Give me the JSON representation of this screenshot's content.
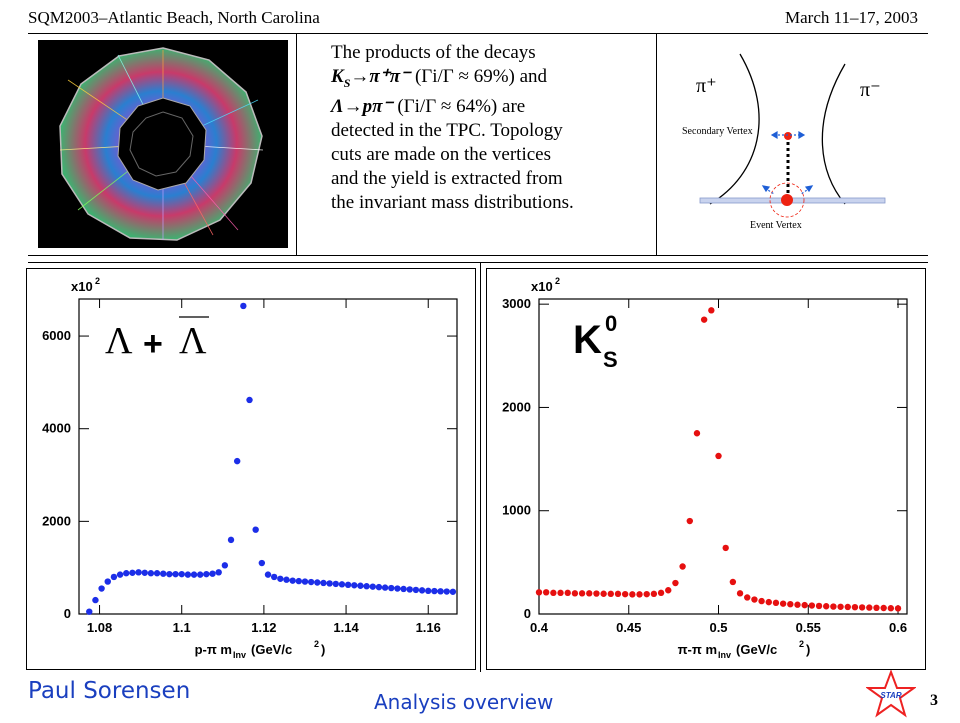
{
  "header": {
    "left": "SQM2003–Atlantic Beach, North Carolina",
    "right": "March 11–17, 2003"
  },
  "intro": {
    "line1": "The products of the decays",
    "line2_decay": "K",
    "line2_sub": "S",
    "line2_rest": "→π⁺π⁻",
    "line2_ratio": " (Γi/Γ  ≈ 69%) and",
    "line3_decay": "Λ→pπ⁻",
    "line3_ratio": " (Γi/Γ  ≈ 64%) are",
    "line4": "detected in the TPC.  Topology",
    "line5": "cuts are made on the vertices",
    "line6": "and the yield is extracted from",
    "line7": "the invariant mass distributions."
  },
  "diagram": {
    "pi_plus": "π⁺",
    "pi_minus": "π⁻",
    "secondary_vertex": "Secondary Vertex",
    "event_vertex": "Event Vertex"
  },
  "footer": {
    "name": "Paul Sorensen",
    "title": "Analysis overview",
    "page": "3",
    "logo_text": "STAR"
  },
  "chart_data": [
    {
      "type": "scatter",
      "title": "Λ + Λ̄",
      "title_main": "Λ",
      "title_plus": "+",
      "title_bar": "Λ",
      "multiplier": "x10",
      "multiplier_exp": "2",
      "xlabel": "p-π m",
      "xlabel_sub": "Inv",
      "xlabel_unit": " (GeV/c",
      "xlabel_exp": "2",
      "xlabel_close": ")",
      "xlim": [
        1.075,
        1.167
      ],
      "ylim": [
        0,
        6800
      ],
      "xticks": [
        1.08,
        1.1,
        1.12,
        1.14,
        1.16
      ],
      "xtick_labels": [
        "1.08",
        "1.1",
        "1.12",
        "1.14",
        "1.16"
      ],
      "yticks": [
        0,
        2000,
        4000,
        6000
      ],
      "ytick_labels": [
        "0",
        "2000",
        "4000",
        "6000"
      ],
      "color": "#1c2ee8",
      "x": [
        1.0775,
        1.079,
        1.0805,
        1.082,
        1.0835,
        1.085,
        1.0865,
        1.088,
        1.0895,
        1.091,
        1.0925,
        1.094,
        1.0955,
        1.097,
        1.0985,
        1.1,
        1.1015,
        1.103,
        1.1045,
        1.106,
        1.1075,
        1.109,
        1.1105,
        1.112,
        1.1135,
        1.115,
        1.1165,
        1.118,
        1.1195,
        1.121,
        1.1225,
        1.124,
        1.1255,
        1.127,
        1.1285,
        1.13,
        1.1315,
        1.133,
        1.1345,
        1.136,
        1.1375,
        1.139,
        1.1405,
        1.142,
        1.1435,
        1.145,
        1.1465,
        1.148,
        1.1495,
        1.151,
        1.1525,
        1.154,
        1.1555,
        1.157,
        1.1585,
        1.16,
        1.1615,
        1.163,
        1.1645,
        1.166
      ],
      "y": [
        50,
        300,
        550,
        700,
        800,
        850,
        880,
        890,
        900,
        890,
        880,
        880,
        870,
        860,
        860,
        860,
        850,
        850,
        850,
        860,
        870,
        900,
        1050,
        1600,
        3300,
        6650,
        4620,
        1820,
        1100,
        850,
        800,
        760,
        740,
        720,
        710,
        700,
        690,
        680,
        670,
        660,
        650,
        640,
        630,
        620,
        610,
        600,
        590,
        580,
        570,
        560,
        550,
        540,
        530,
        520,
        510,
        500,
        495,
        490,
        485,
        480
      ]
    },
    {
      "type": "scatter",
      "title": "K S 0",
      "title_main": "K",
      "title_sub": "S",
      "title_sup": "0",
      "multiplier": "x10",
      "multiplier_exp": "2",
      "xlabel": "π-π m",
      "xlabel_sub": "Inv",
      "xlabel_unit": " (GeV/c",
      "xlabel_exp": "2",
      "xlabel_close": ")",
      "xlim": [
        0.4,
        0.605
      ],
      "ylim": [
        0,
        3050
      ],
      "xticks": [
        0.4,
        0.45,
        0.5,
        0.55,
        0.6
      ],
      "xtick_labels": [
        "0.4",
        "0.45",
        "0.5",
        "0.55",
        "0.6"
      ],
      "yticks": [
        0,
        1000,
        2000,
        3000
      ],
      "ytick_labels": [
        "0",
        "1000",
        "2000",
        "3000"
      ],
      "color": "#e61010",
      "x": [
        0.4,
        0.404,
        0.408,
        0.412,
        0.416,
        0.42,
        0.424,
        0.428,
        0.432,
        0.436,
        0.44,
        0.444,
        0.448,
        0.452,
        0.456,
        0.46,
        0.464,
        0.468,
        0.472,
        0.476,
        0.48,
        0.484,
        0.488,
        0.492,
        0.496,
        0.5,
        0.504,
        0.508,
        0.512,
        0.516,
        0.52,
        0.524,
        0.528,
        0.532,
        0.536,
        0.54,
        0.544,
        0.548,
        0.552,
        0.556,
        0.56,
        0.564,
        0.568,
        0.572,
        0.576,
        0.58,
        0.584,
        0.588,
        0.592,
        0.596,
        0.6
      ],
      "y": [
        210,
        210,
        205,
        205,
        205,
        200,
        200,
        200,
        198,
        196,
        195,
        195,
        192,
        190,
        190,
        192,
        195,
        205,
        230,
        300,
        460,
        900,
        1750,
        2850,
        2940,
        1530,
        640,
        310,
        200,
        160,
        140,
        125,
        115,
        108,
        100,
        95,
        90,
        86,
        82,
        78,
        75,
        72,
        70,
        68,
        66,
        64,
        62,
        60,
        58,
        56,
        54
      ]
    }
  ]
}
